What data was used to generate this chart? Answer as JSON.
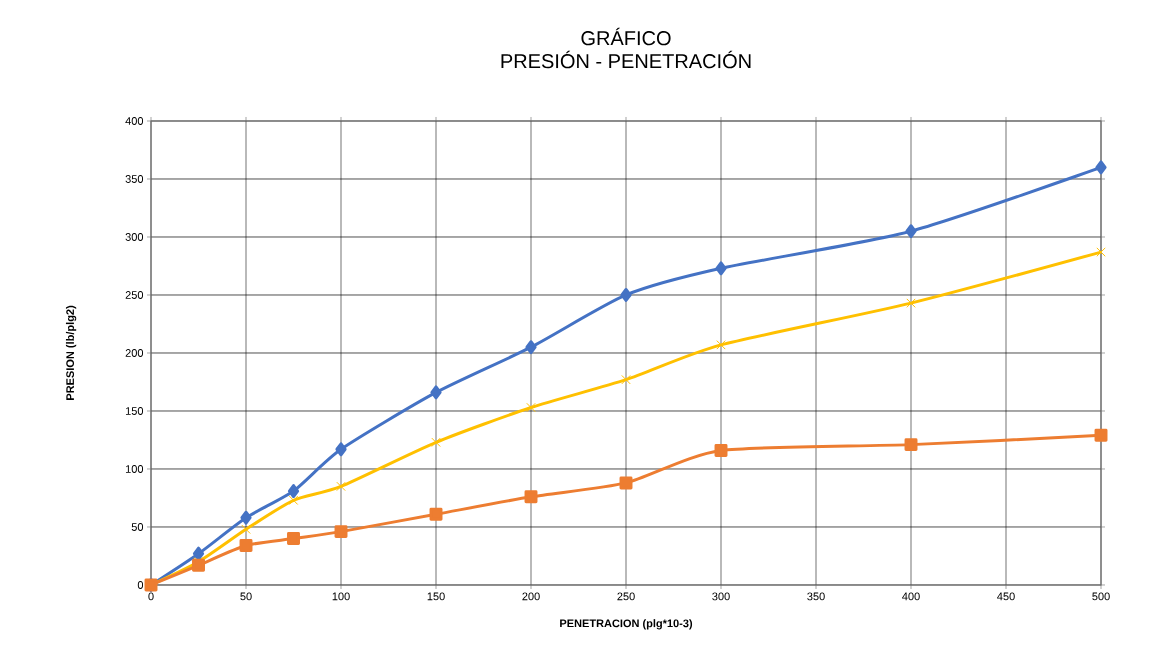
{
  "chart_data": {
    "type": "line",
    "title": "GRÁFICO",
    "subtitle": "PRESIÓN - PENETRACIÓN",
    "xlabel": "PENETRACION (plg*10-3)",
    "ylabel": "PRESION (lb/plg2)",
    "x": [
      0,
      25,
      50,
      75,
      100,
      150,
      200,
      250,
      300,
      400,
      500
    ],
    "series": [
      {
        "color": "#4472c4",
        "marker": "diamond",
        "values": [
          0,
          27,
          58,
          81,
          117,
          166,
          205,
          250,
          273,
          305,
          360
        ]
      },
      {
        "color": "#ffc000",
        "marker": "cross",
        "values": [
          0,
          20,
          48,
          73,
          85,
          123,
          153,
          177,
          207,
          243,
          287
        ]
      },
      {
        "color": "#ed7d31",
        "marker": "square",
        "values": [
          0,
          17,
          34,
          40,
          46,
          61,
          76,
          88,
          116,
          121,
          129
        ]
      }
    ],
    "xlim": [
      0,
      500
    ],
    "ylim": [
      0,
      400
    ],
    "xticks": [
      0,
      50,
      100,
      150,
      200,
      250,
      300,
      350,
      400,
      450,
      500
    ],
    "yticks": [
      0,
      50,
      100,
      150,
      200,
      250,
      300,
      350,
      400
    ],
    "grid": true,
    "line_style": "solid"
  }
}
